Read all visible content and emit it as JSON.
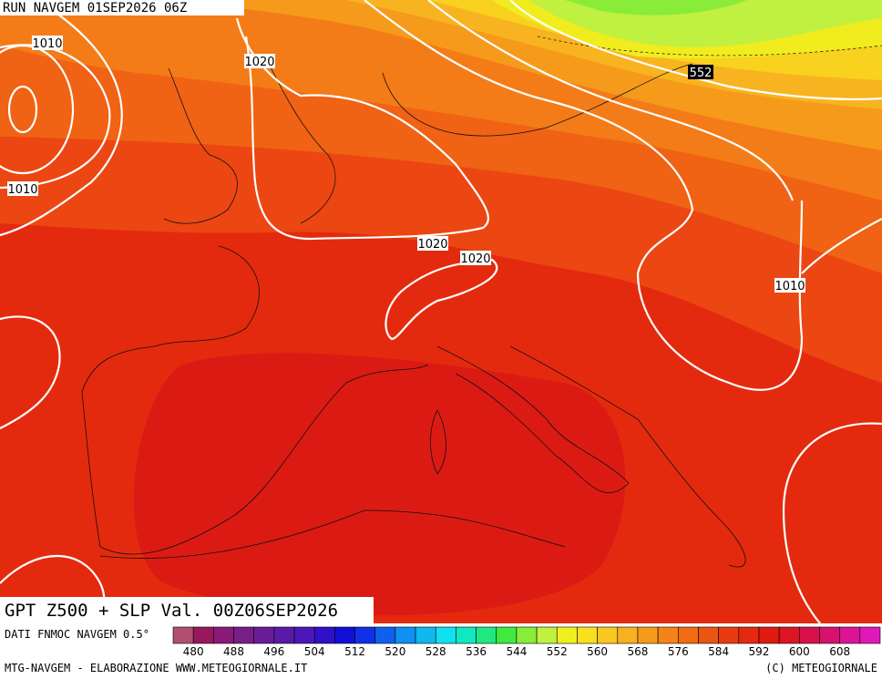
{
  "header": {
    "run": "RUN NAVGEM 01SEP2026 06Z"
  },
  "isobar_labels": [
    "1010",
    "1020",
    "1010",
    "1020",
    "1020",
    "1010"
  ],
  "height_label": "552",
  "map_title": "GPT Z500 + SLP Val. 00Z06SEP2026",
  "colorbar": {
    "source": "DATI FNMOC NAVGEM 0.5°",
    "labels": [
      "480",
      "488",
      "496",
      "504",
      "512",
      "520",
      "528",
      "536",
      "544",
      "552",
      "560",
      "568",
      "576",
      "584",
      "592",
      "600",
      "608"
    ],
    "colors": [
      "#b0506e",
      "#98185e",
      "#8a1a78",
      "#781e88",
      "#6a1c98",
      "#5a1aa8",
      "#4a18b8",
      "#3010c8",
      "#1010d8",
      "#1030e8",
      "#1060f0",
      "#1090f0",
      "#10b8f0",
      "#10e0f0",
      "#10e8c0",
      "#20e880",
      "#40e840",
      "#88ec38",
      "#c0f040",
      "#f0f020",
      "#f8e01e",
      "#f8c820",
      "#f8b020",
      "#f69a1c",
      "#f48418",
      "#f06c14",
      "#ec5412",
      "#e83c10",
      "#e42a0e",
      "#e01a12",
      "#dc1424",
      "#d8104a",
      "#d8106e",
      "#dc1494",
      "#e018b8"
    ]
  },
  "footer": {
    "left": "MTG-NAVGEM - ELABORAZIONE WWW.METEOGIORNALE.IT",
    "right": "(C) METEOGIORNALE"
  }
}
